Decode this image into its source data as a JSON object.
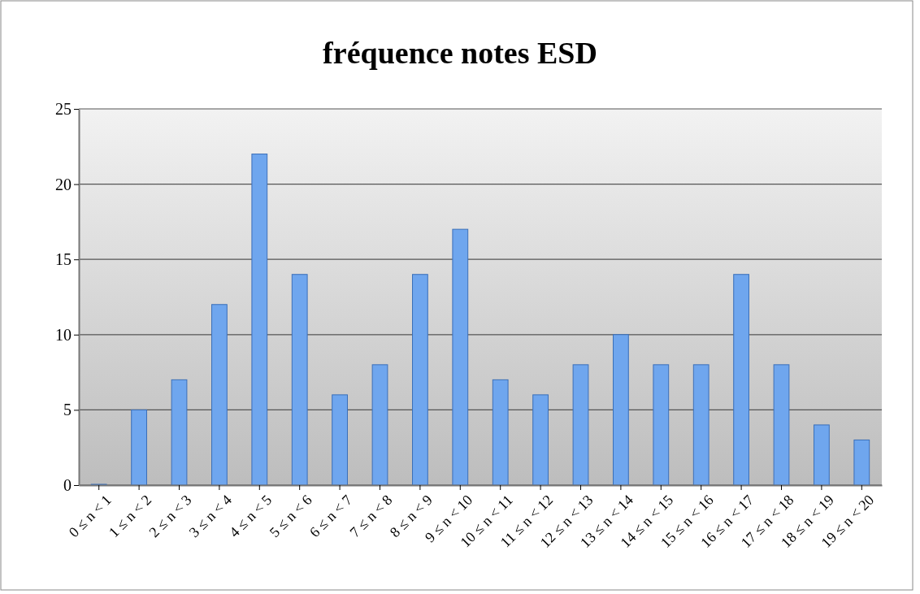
{
  "chart_data": {
    "type": "bar",
    "title": "fréquence notes ESD",
    "categories": [
      "0 ≤ n < 1",
      "1 ≤ n < 2",
      "2 ≤ n < 3",
      "3 ≤ n < 4",
      "4 ≤ n < 5",
      "5 ≤ n < 6",
      "6 ≤ n < 7",
      "7 ≤ n < 8",
      "8 ≤ n < 9",
      "9 ≤ n < 10",
      "10 ≤ n < 11",
      "11 ≤ n < 12",
      "12 ≤ n < 13",
      "13 ≤ n < 14",
      "14 ≤ n < 15",
      "15 ≤ n < 16",
      "16 ≤ n < 17",
      "17 ≤ n < 18",
      "18 ≤ n < 19",
      "19 ≤ n < 20"
    ],
    "values": [
      0,
      5,
      7,
      12,
      22,
      14,
      6,
      8,
      14,
      17,
      7,
      6,
      8,
      10,
      8,
      8,
      14,
      8,
      4,
      3
    ],
    "color": "#6fa6ee",
    "ylim": [
      0,
      25
    ],
    "yticks": [
      0,
      5,
      10,
      15,
      20,
      25
    ],
    "grid": "y"
  }
}
